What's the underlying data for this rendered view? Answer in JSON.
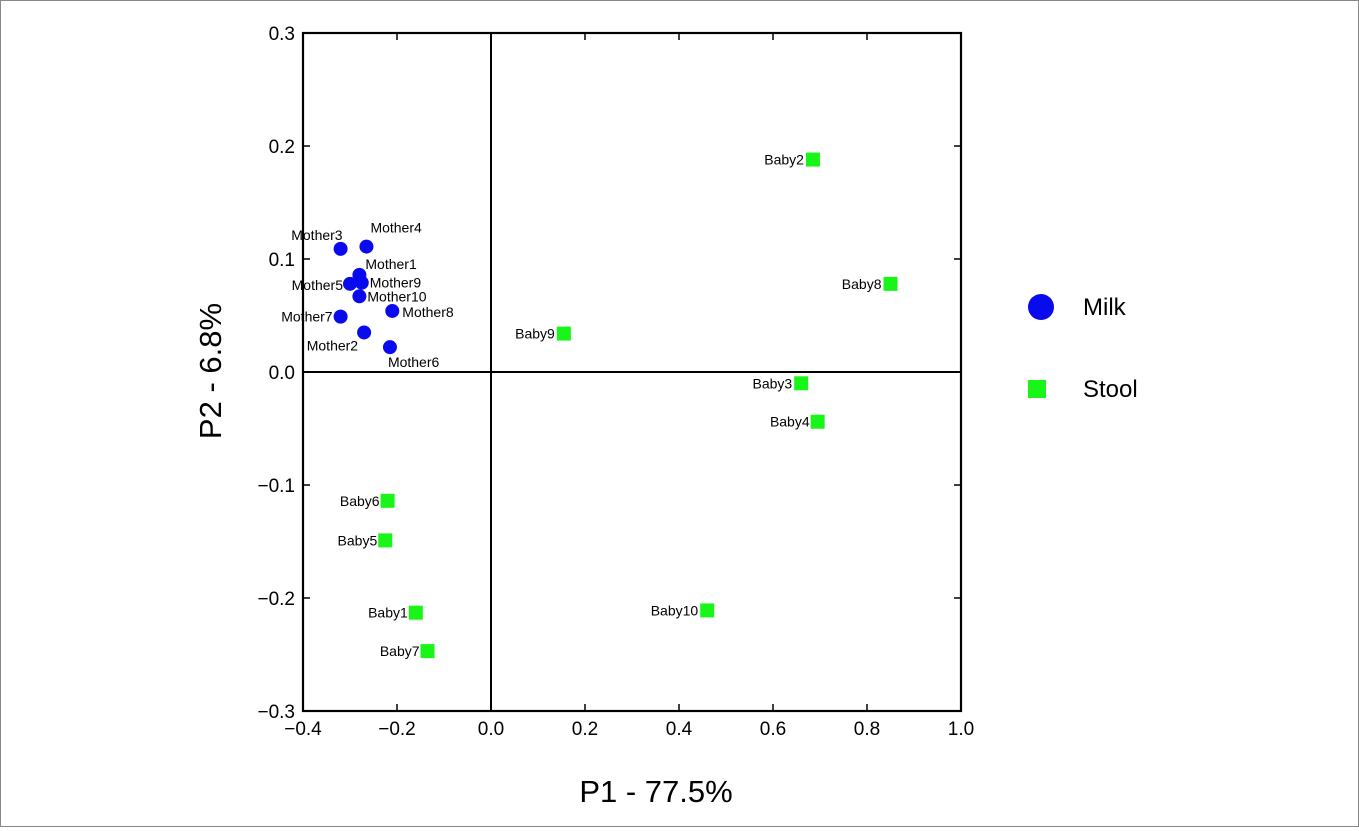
{
  "chart_data": {
    "type": "scatter",
    "xlabel": "P1 - 77.5%",
    "ylabel": "P2 - 6.8%",
    "xlim": [
      -0.4,
      1.0
    ],
    "ylim": [
      -0.3,
      0.3
    ],
    "x_ticks": [
      "−0.4",
      "−0.2",
      "0.0",
      "0.2",
      "0.4",
      "0.6",
      "0.8",
      "1.0"
    ],
    "y_ticks": [
      "−0.3",
      "−0.2",
      "−0.1",
      "0.0",
      "0.1",
      "0.2",
      "0.3"
    ],
    "grid": false,
    "zero_lines": true,
    "legend_position": "right",
    "series": [
      {
        "name": "Milk",
        "marker": "circle",
        "color": "#0a0aef",
        "points": [
          {
            "label": "Mother1",
            "x": -0.28,
            "y": 0.086
          },
          {
            "label": "Mother2",
            "x": -0.27,
            "y": 0.035
          },
          {
            "label": "Mother3",
            "x": -0.32,
            "y": 0.109
          },
          {
            "label": "Mother4",
            "x": -0.265,
            "y": 0.111
          },
          {
            "label": "Mother5",
            "x": -0.3,
            "y": 0.078
          },
          {
            "label": "Mother6",
            "x": -0.215,
            "y": 0.022
          },
          {
            "label": "Mother7",
            "x": -0.32,
            "y": 0.049
          },
          {
            "label": "Mother8",
            "x": -0.21,
            "y": 0.054
          },
          {
            "label": "Mother9",
            "x": -0.275,
            "y": 0.079
          },
          {
            "label": "Mother10",
            "x": -0.28,
            "y": 0.067
          }
        ]
      },
      {
        "name": "Stool",
        "marker": "square",
        "color": "#19f519",
        "points": [
          {
            "label": "Baby1",
            "x": -0.16,
            "y": -0.213
          },
          {
            "label": "Baby2",
            "x": 0.685,
            "y": 0.188
          },
          {
            "label": "Baby3",
            "x": 0.66,
            "y": -0.01
          },
          {
            "label": "Baby4",
            "x": 0.695,
            "y": -0.044
          },
          {
            "label": "Baby5",
            "x": -0.225,
            "y": -0.149
          },
          {
            "label": "Baby6",
            "x": -0.22,
            "y": -0.114
          },
          {
            "label": "Baby7",
            "x": -0.135,
            "y": -0.247
          },
          {
            "label": "Baby8",
            "x": 0.85,
            "y": 0.078
          },
          {
            "label": "Baby9",
            "x": 0.155,
            "y": 0.034
          },
          {
            "label": "Baby10",
            "x": 0.46,
            "y": -0.211
          }
        ]
      }
    ]
  }
}
